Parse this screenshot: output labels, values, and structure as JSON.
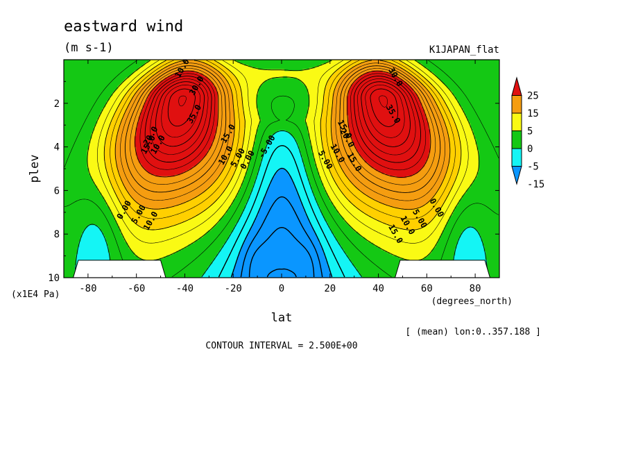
{
  "chart_data": {
    "type": "contour",
    "title": "eastward wind",
    "units": "(m s-1)",
    "dataset": "K1JAPAN_flat",
    "xlabel": "lat",
    "xunits": "(degrees_north)",
    "ylabel": "plev",
    "yunits": "(x1E4 Pa)",
    "xlim": [
      -90,
      90
    ],
    "ylim": [
      10,
      0
    ],
    "x_ticks": [
      -80,
      -60,
      -40,
      -20,
      0,
      20,
      40,
      60,
      80
    ],
    "x_tick_labels": [
      "-80",
      "-60",
      "-40",
      "-20",
      "0",
      "20",
      "40",
      "60",
      "80"
    ],
    "y_ticks": [
      2,
      4,
      6,
      8,
      10
    ],
    "y_tick_labels": [
      "2",
      "4",
      "6",
      "8",
      "10"
    ],
    "annotation": "[ (mean) lon:0..357.188 ]",
    "contour_interval_text": "CONTOUR INTERVAL = 2.500E+00",
    "colorbar": {
      "labels": [
        "25",
        "15",
        "5",
        "0",
        "-5",
        "-15"
      ],
      "bands": [
        {
          "color": "#e01010"
        },
        {
          "color": "#f59d10"
        },
        {
          "color": "#fafa14"
        },
        {
          "color": "#14c814"
        },
        {
          "color": "#14f5f5"
        },
        {
          "color": "#0a96ff"
        }
      ]
    },
    "fill_levels": [
      -15,
      -5,
      0,
      5,
      10,
      15,
      25
    ],
    "fill_colors": [
      "#0a96ff",
      "#14f5f5",
      "#14c814",
      "#fafa14",
      "#ffd000",
      "#f59d10",
      "#e01010"
    ],
    "jets": [
      {
        "lat": -41,
        "plev": 1.8,
        "u_max": 42
      },
      {
        "lat": 42,
        "plev": 1.8,
        "u_max": 42
      }
    ],
    "contour_labels": [
      {
        "text": "10.0",
        "lat": -41,
        "plev": 0.4
      },
      {
        "text": "30.0",
        "lat": -35,
        "plev": 1.2
      },
      {
        "text": "35.0",
        "lat": -36,
        "plev": 2.5
      },
      {
        "text": "20.0",
        "lat": -54,
        "plev": 3.5
      },
      {
        "text": "15.0",
        "lat": -55,
        "plev": 3.9
      },
      {
        "text": "10.0",
        "lat": -51,
        "plev": 3.9
      },
      {
        "text": "15.0",
        "lat": -22,
        "plev": 3.4
      },
      {
        "text": "10.0",
        "lat": -23,
        "plev": 4.4
      },
      {
        "text": "5.00",
        "lat": -18,
        "plev": 4.5
      },
      {
        "text": "0.00",
        "lat": -14,
        "plev": 4.6
      },
      {
        "text": "-5.00",
        "lat": -6,
        "plev": 4.0
      },
      {
        "text": "0.00",
        "lat": -65,
        "plev": 6.9
      },
      {
        "text": "5.00",
        "lat": -59,
        "plev": 7.1
      },
      {
        "text": "10.0",
        "lat": -54,
        "plev": 7.4
      },
      {
        "text": "30.0",
        "lat": 47,
        "plev": 0.8
      },
      {
        "text": "35.0",
        "lat": 46,
        "plev": 2.5
      },
      {
        "text": "15.0",
        "lat": 26,
        "plev": 3.2
      },
      {
        "text": "20.0",
        "lat": 27,
        "plev": 3.6
      },
      {
        "text": "15.0",
        "lat": 30,
        "plev": 4.7
      },
      {
        "text": "10.0",
        "lat": 23,
        "plev": 4.3
      },
      {
        "text": "5.00",
        "lat": 18,
        "plev": 4.6
      },
      {
        "text": "0.00",
        "lat": 64,
        "plev": 6.8
      },
      {
        "text": "5.00",
        "lat": 57,
        "plev": 7.3
      },
      {
        "text": "10.0",
        "lat": 52,
        "plev": 7.6
      },
      {
        "text": "15.0",
        "lat": 47,
        "plev": 8.0
      }
    ],
    "missing_regions": [
      {
        "lat_range": [
          -84,
          -50
        ],
        "plev_top": 9.2
      },
      {
        "lat_range": [
          49,
          84
        ],
        "plev_top": 9.2
      }
    ]
  }
}
